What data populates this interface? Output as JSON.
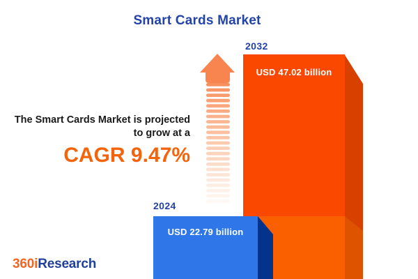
{
  "title": "Smart Cards Market",
  "projection": {
    "line1": "The Smart Cards Market is projected",
    "line2": "to grow at a",
    "cagr": "CAGR 9.47%"
  },
  "bars": [
    {
      "year": "2024",
      "value_label": "USD 22.79 billion"
    },
    {
      "year": "2032",
      "value_label": "USD 47.02 billion"
    }
  ],
  "logo": {
    "prefix": "360i",
    "suffix": "Research"
  },
  "icons": {
    "growth_arrow": "up-arrow-dashed-fade"
  },
  "colors": {
    "title_blue": "#2343A6",
    "text_dark": "#1A1A1A",
    "cagr_orange": "#F3640D",
    "arrow_orange": "#F8854F",
    "bar_2032": {
      "face": "#FA4800",
      "side": "#D84000",
      "lower_face": "#FB6000",
      "lower_side": "#DE5300"
    },
    "bar_2024": {
      "face": "#2F76E8",
      "side": "#04338C"
    },
    "logo_orange": "#F26522",
    "logo_blue": "#21409A",
    "background": "#FFFFFF"
  },
  "chart_data": {
    "type": "bar",
    "categories": [
      "2024",
      "2032"
    ],
    "values": [
      22.79,
      47.02
    ],
    "unit": "USD billion",
    "value_labels": [
      "USD 22.79 billion",
      "USD 47.02 billion"
    ],
    "title": "Smart Cards Market",
    "annotation": "CAGR 9.47%",
    "bar_colors": [
      "#2F76E8",
      "#FA4800"
    ],
    "axes": "none",
    "grid": false,
    "legend": "none",
    "style": "3d-infographic-cuboids"
  }
}
